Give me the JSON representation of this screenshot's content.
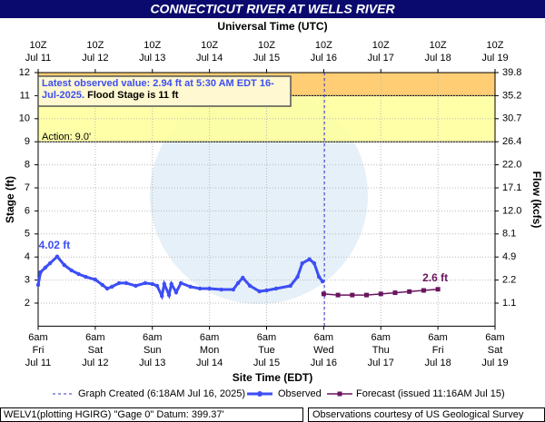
{
  "chart_data": {
    "type": "line",
    "title": "CONNECTICUT RIVER AT WELLS RIVER",
    "top_axis_label": "Universal Time (UTC)",
    "x_label": "Site Time (EDT)",
    "y_label": "Stage (ft)",
    "y2_label": "Flow (kcfs)",
    "xlim": [
      "2025-07-11T06:00",
      "2025-07-19T06:00"
    ],
    "xticks": [
      {
        "value": "2025-07-11T06:00",
        "label": "6am",
        "day": "Fri",
        "date": "Jul 11"
      },
      {
        "value": "2025-07-12T06:00",
        "label": "6am",
        "day": "Sat",
        "date": "Jul 12"
      },
      {
        "value": "2025-07-13T06:00",
        "label": "6am",
        "day": "Sun",
        "date": "Jul 13"
      },
      {
        "value": "2025-07-14T06:00",
        "label": "6am",
        "day": "Mon",
        "date": "Jul 14"
      },
      {
        "value": "2025-07-15T06:00",
        "label": "6am",
        "day": "Tue",
        "date": "Jul 15"
      },
      {
        "value": "2025-07-16T06:00",
        "label": "6am",
        "day": "Wed",
        "date": "Jul 16"
      },
      {
        "value": "2025-07-17T06:00",
        "label": "6am",
        "day": "Thu",
        "date": "Jul 17"
      },
      {
        "value": "2025-07-18T06:00",
        "label": "6am",
        "day": "Fri",
        "date": "Jul 18"
      },
      {
        "value": "2025-07-19T06:00",
        "label": "6am",
        "day": "Sat",
        "date": "Jul 19"
      }
    ],
    "x2ticks": [
      {
        "value": "2025-07-11T06:00",
        "label": "10Z",
        "date": "Jul 11"
      },
      {
        "value": "2025-07-12T06:00",
        "label": "10Z",
        "date": "Jul 12"
      },
      {
        "value": "2025-07-13T06:00",
        "label": "10Z",
        "date": "Jul 13"
      },
      {
        "value": "2025-07-14T06:00",
        "label": "10Z",
        "date": "Jul 14"
      },
      {
        "value": "2025-07-15T06:00",
        "label": "10Z",
        "date": "Jul 15"
      },
      {
        "value": "2025-07-16T06:00",
        "label": "10Z",
        "date": "Jul 16"
      },
      {
        "value": "2025-07-17T06:00",
        "label": "10Z",
        "date": "Jul 17"
      },
      {
        "value": "2025-07-18T06:00",
        "label": "10Z",
        "date": "Jul 18"
      },
      {
        "value": "2025-07-19T06:00",
        "label": "10Z",
        "date": "Jul 19"
      }
    ],
    "ylim": [
      1,
      12
    ],
    "yticks": [
      2,
      3,
      4,
      5,
      6,
      7,
      8,
      9,
      10,
      11,
      12
    ],
    "y2ticks": [
      1.1,
      2.2,
      4.9,
      8.1,
      {
        "value": 12,
        "label": "12.0"
      },
      17.1,
      {
        "value": 22,
        "label": "22.0"
      },
      26.4,
      30.7,
      35.2,
      39.8
    ],
    "grid": true,
    "thresholds": [
      {
        "value": 9,
        "label": "Action: 9.0'",
        "color": "#ffff99"
      },
      {
        "value": 11,
        "color": "#ffc65c"
      }
    ],
    "annotation": {
      "latest": "Latest observed value: 2.94 ft at 5:30 AM EDT 16-Jul-2025.",
      "flood": "Flood Stage is 11 ft"
    },
    "graph_created": {
      "x": "2025-07-16T06:18",
      "label": "Graph Created (6:18AM Jul 16, 2025)",
      "color": "#3333cc"
    },
    "series": [
      {
        "name": "Observed",
        "color": "#3d4ef5",
        "x": [
          "2025-07-11T06:00",
          "2025-07-11T07:00",
          "2025-07-11T09:00",
          "2025-07-11T11:00",
          "2025-07-11T14:00",
          "2025-07-11T17:00",
          "2025-07-11T20:00",
          "2025-07-11T23:00",
          "2025-07-12T02:00",
          "2025-07-12T06:00",
          "2025-07-12T09:00",
          "2025-07-12T11:00",
          "2025-07-12T13:00",
          "2025-07-12T16:00",
          "2025-07-12T19:00",
          "2025-07-12T23:00",
          "2025-07-13T03:00",
          "2025-07-13T06:00",
          "2025-07-13T08:00",
          "2025-07-13T10:00",
          "2025-07-13T11:00",
          "2025-07-13T13:00",
          "2025-07-13T14:00",
          "2025-07-13T16:00",
          "2025-07-13T18:00",
          "2025-07-13T22:00",
          "2025-07-14T02:00",
          "2025-07-14T06:00",
          "2025-07-14T11:00",
          "2025-07-14T16:00",
          "2025-07-14T18:00",
          "2025-07-14T20:00",
          "2025-07-14T23:00",
          "2025-07-15T03:00",
          "2025-07-15T06:00",
          "2025-07-15T10:00",
          "2025-07-15T16:00",
          "2025-07-15T19:00",
          "2025-07-15T21:00",
          "2025-07-16T00:00",
          "2025-07-16T02:00",
          "2025-07-16T04:00",
          "2025-07-16T05:30"
        ],
        "values": [
          2.79,
          3.34,
          3.54,
          3.73,
          4.02,
          3.65,
          3.42,
          3.26,
          3.14,
          3.02,
          2.79,
          2.63,
          2.71,
          2.87,
          2.87,
          2.75,
          2.87,
          2.83,
          2.75,
          2.31,
          2.83,
          2.35,
          2.83,
          2.47,
          2.87,
          2.71,
          2.63,
          2.63,
          2.59,
          2.59,
          2.87,
          3.1,
          2.75,
          2.51,
          2.55,
          2.63,
          2.75,
          3.14,
          3.73,
          3.9,
          3.73,
          3.14,
          2.94
        ],
        "value_labels": [
          null,
          null,
          null,
          null,
          "4.02 ft",
          null,
          null,
          null,
          null,
          null,
          null,
          null,
          null,
          null,
          null,
          null,
          null,
          null,
          null,
          null,
          null,
          null,
          null,
          null,
          null,
          null,
          null,
          null,
          null,
          null,
          null,
          null,
          null,
          null,
          null,
          null,
          null,
          null,
          null,
          null,
          null,
          null,
          null
        ]
      },
      {
        "name": "Forecast (issued 11:16AM Jul 15)",
        "color": "#6a1460",
        "x": [
          "2025-07-16T06:00",
          "2025-07-16T12:00",
          "2025-07-16T18:00",
          "2025-07-17T00:00",
          "2025-07-17T06:00",
          "2025-07-17T12:00",
          "2025-07-17T18:00",
          "2025-07-18T00:00",
          "2025-07-18T06:00"
        ],
        "values": [
          2.4,
          2.35,
          2.35,
          2.35,
          2.4,
          2.45,
          2.5,
          2.55,
          2.6
        ],
        "value_labels": [
          null,
          null,
          null,
          null,
          null,
          null,
          null,
          null,
          "2.6 ft"
        ]
      }
    ],
    "footer": {
      "left": "WELV1(plotting HGIRG) \"Gage 0\" Datum: 399.37'",
      "right": "Observations courtesy of US Geological Survey"
    }
  }
}
